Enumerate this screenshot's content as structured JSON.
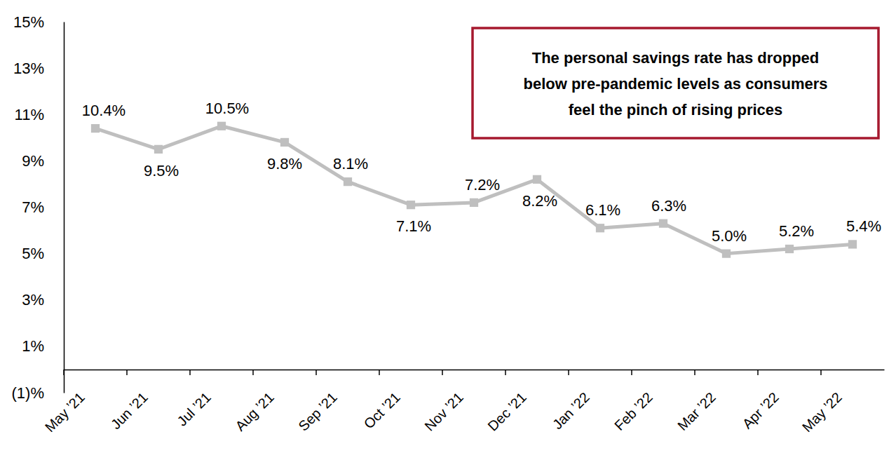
{
  "chart_data": {
    "type": "line",
    "annotation": [
      "The personal savings rate has dropped",
      "below pre-pandemic levels as consumers",
      "feel the pinch of rising prices"
    ],
    "categories": [
      "May ’21",
      "Jun ’21",
      "Jul ’21",
      "Aug ’21",
      "Sep ’21",
      "Oct ’21",
      "Nov ’21",
      "Dec ’21",
      "Jan ’22",
      "Feb ’22",
      "Mar ’22",
      "Apr ’22",
      "May ’22"
    ],
    "values": [
      10.4,
      9.5,
      10.5,
      9.8,
      8.1,
      7.1,
      7.2,
      8.2,
      6.1,
      6.3,
      5.0,
      5.2,
      5.4
    ],
    "value_labels": [
      "10.4%",
      "9.5%",
      "10.5%",
      "9.8%",
      "8.1%",
      "7.1%",
      "7.2%",
      "8.2%",
      "6.1%",
      "6.3%",
      "5.0%",
      "5.2%",
      "5.4%"
    ],
    "color": "#bfbfbf",
    "marker": "square",
    "data_labels": true,
    "grid": false,
    "ylim": [
      -1,
      15
    ],
    "yticks": [
      {
        "value": -1,
        "label": "(1)%"
      },
      {
        "value": 1,
        "label": "1%"
      },
      {
        "value": 3,
        "label": "3%"
      },
      {
        "value": 5,
        "label": "5%"
      },
      {
        "value": 7,
        "label": "7%"
      },
      {
        "value": 9,
        "label": "9%"
      },
      {
        "value": 11,
        "label": "11%"
      },
      {
        "value": 13,
        "label": "13%"
      },
      {
        "value": 15,
        "label": "15%"
      }
    ]
  }
}
